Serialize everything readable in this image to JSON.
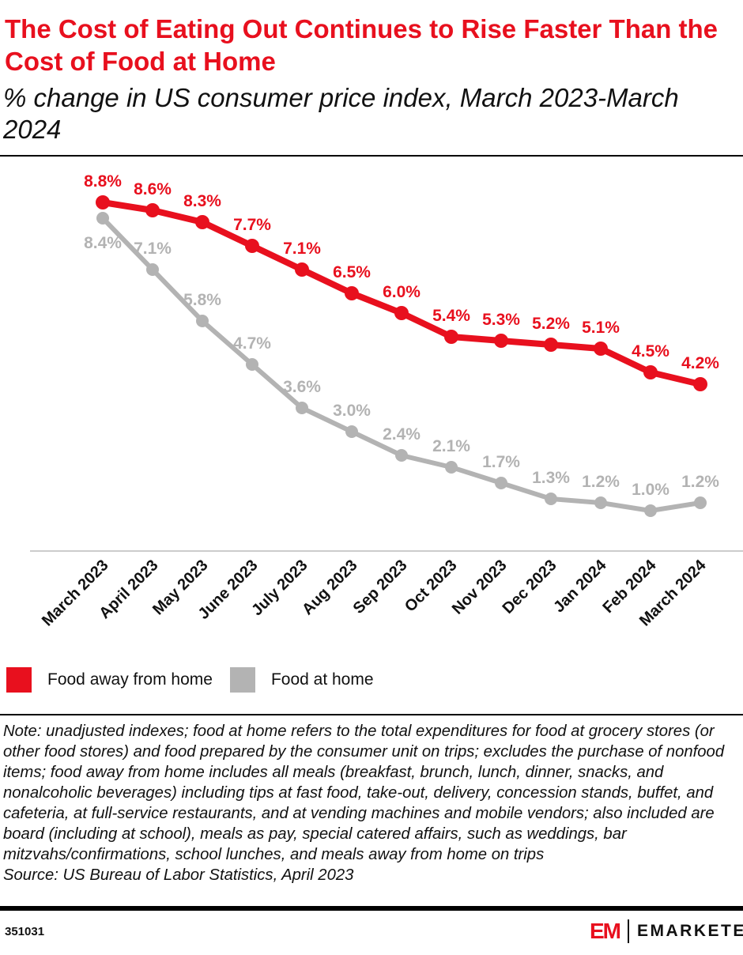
{
  "title": "The Cost of Eating Out Continues to Rise Faster Than the Cost of Food at Home",
  "subtitle": "% change in US consumer price index, March 2023-March 2024",
  "chart_data": {
    "type": "line",
    "categories": [
      "March 2023",
      "April 2023",
      "May 2023",
      "June 2023",
      "July 2023",
      "Aug 2023",
      "Sep 2023",
      "Oct 2023",
      "Nov 2023",
      "Dec 2023",
      "Jan 2024",
      "Feb 2024",
      "March 2024"
    ],
    "series": [
      {
        "name": "Food away from home",
        "color": "#e8101e",
        "values": [
          8.8,
          8.6,
          8.3,
          7.7,
          7.1,
          6.5,
          6.0,
          5.4,
          5.3,
          5.2,
          5.1,
          4.5,
          4.2
        ],
        "labels": [
          "8.8%",
          "8.6%",
          "8.3%",
          "7.7%",
          "7.1%",
          "6.5%",
          "6.0%",
          "5.4%",
          "5.3%",
          "5.2%",
          "5.1%",
          "4.5%",
          "4.2%"
        ]
      },
      {
        "name": "Food at home",
        "color": "#b3b3b3",
        "values": [
          8.4,
          7.1,
          5.8,
          4.7,
          3.6,
          3.0,
          2.4,
          2.1,
          1.7,
          1.3,
          1.2,
          1.0,
          1.2
        ],
        "labels": [
          "8.4%",
          "7.1%",
          "5.8%",
          "4.7%",
          "3.6%",
          "3.0%",
          "2.4%",
          "2.1%",
          "1.7%",
          "1.3%",
          "1.2%",
          "1.0%",
          "1.2%"
        ]
      }
    ],
    "ylim": [
      0,
      8.8
    ],
    "grid": false,
    "legend_placement": "bottom-left"
  },
  "note": "Note: unadjusted indexes; food at home refers to the total expenditures for food at grocery stores (or other food stores) and food prepared by the consumer unit on trips; excludes the purchase of nonfood items; food away from home includes all meals (breakfast, brunch, lunch, dinner, snacks, and nonalcoholic beverages) including tips at fast food, take-out, delivery, concession stands, buffet, and cafeteria, at full-service restaurants, and at vending machines and mobile vendors; also included are board (including at school), meals as pay, special catered affairs, such as weddings, bar mitzvahs/confirmations, school lunches, and meals away from home on trips",
  "source": "Source: US Bureau of Labor Statistics, April 2023",
  "chart_id": "351031",
  "logo": {
    "mark": "EM",
    "word": "EMARKETER"
  }
}
